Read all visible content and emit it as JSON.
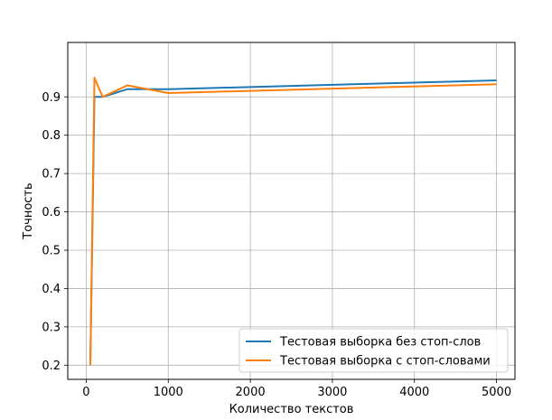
{
  "chart_data": {
    "type": "line",
    "title": "",
    "xlabel": "Количество текстов",
    "ylabel": "Точность",
    "xlim": [
      -225,
      5225
    ],
    "ylim": [
      0.163,
      1.042
    ],
    "grid": true,
    "legend_position": "lower-right",
    "x_ticks": [
      0,
      1000,
      2000,
      3000,
      4000,
      5000
    ],
    "x_tick_labels": [
      "0",
      "1000",
      "2000",
      "3000",
      "4000",
      "5000"
    ],
    "y_ticks": [
      0.2,
      0.3,
      0.4,
      0.5,
      0.6,
      0.7,
      0.8,
      0.9
    ],
    "y_tick_labels": [
      "0.2",
      "0.3",
      "0.4",
      "0.5",
      "0.6",
      "0.7",
      "0.8",
      "0.9"
    ],
    "series": [
      {
        "name": "Тестовая выборка без стоп-слов",
        "color": "#1f77b4",
        "x": [
          50,
          100,
          200,
          500,
          1000,
          5000
        ],
        "y": [
          0.2,
          0.9,
          0.9,
          0.92,
          0.92,
          0.943
        ]
      },
      {
        "name": "Тестовая выборка с стоп-словами",
        "color": "#ff7f0e",
        "x": [
          50,
          100,
          200,
          500,
          1000,
          5000
        ],
        "y": [
          0.2,
          0.95,
          0.9,
          0.93,
          0.91,
          0.933
        ]
      }
    ]
  }
}
